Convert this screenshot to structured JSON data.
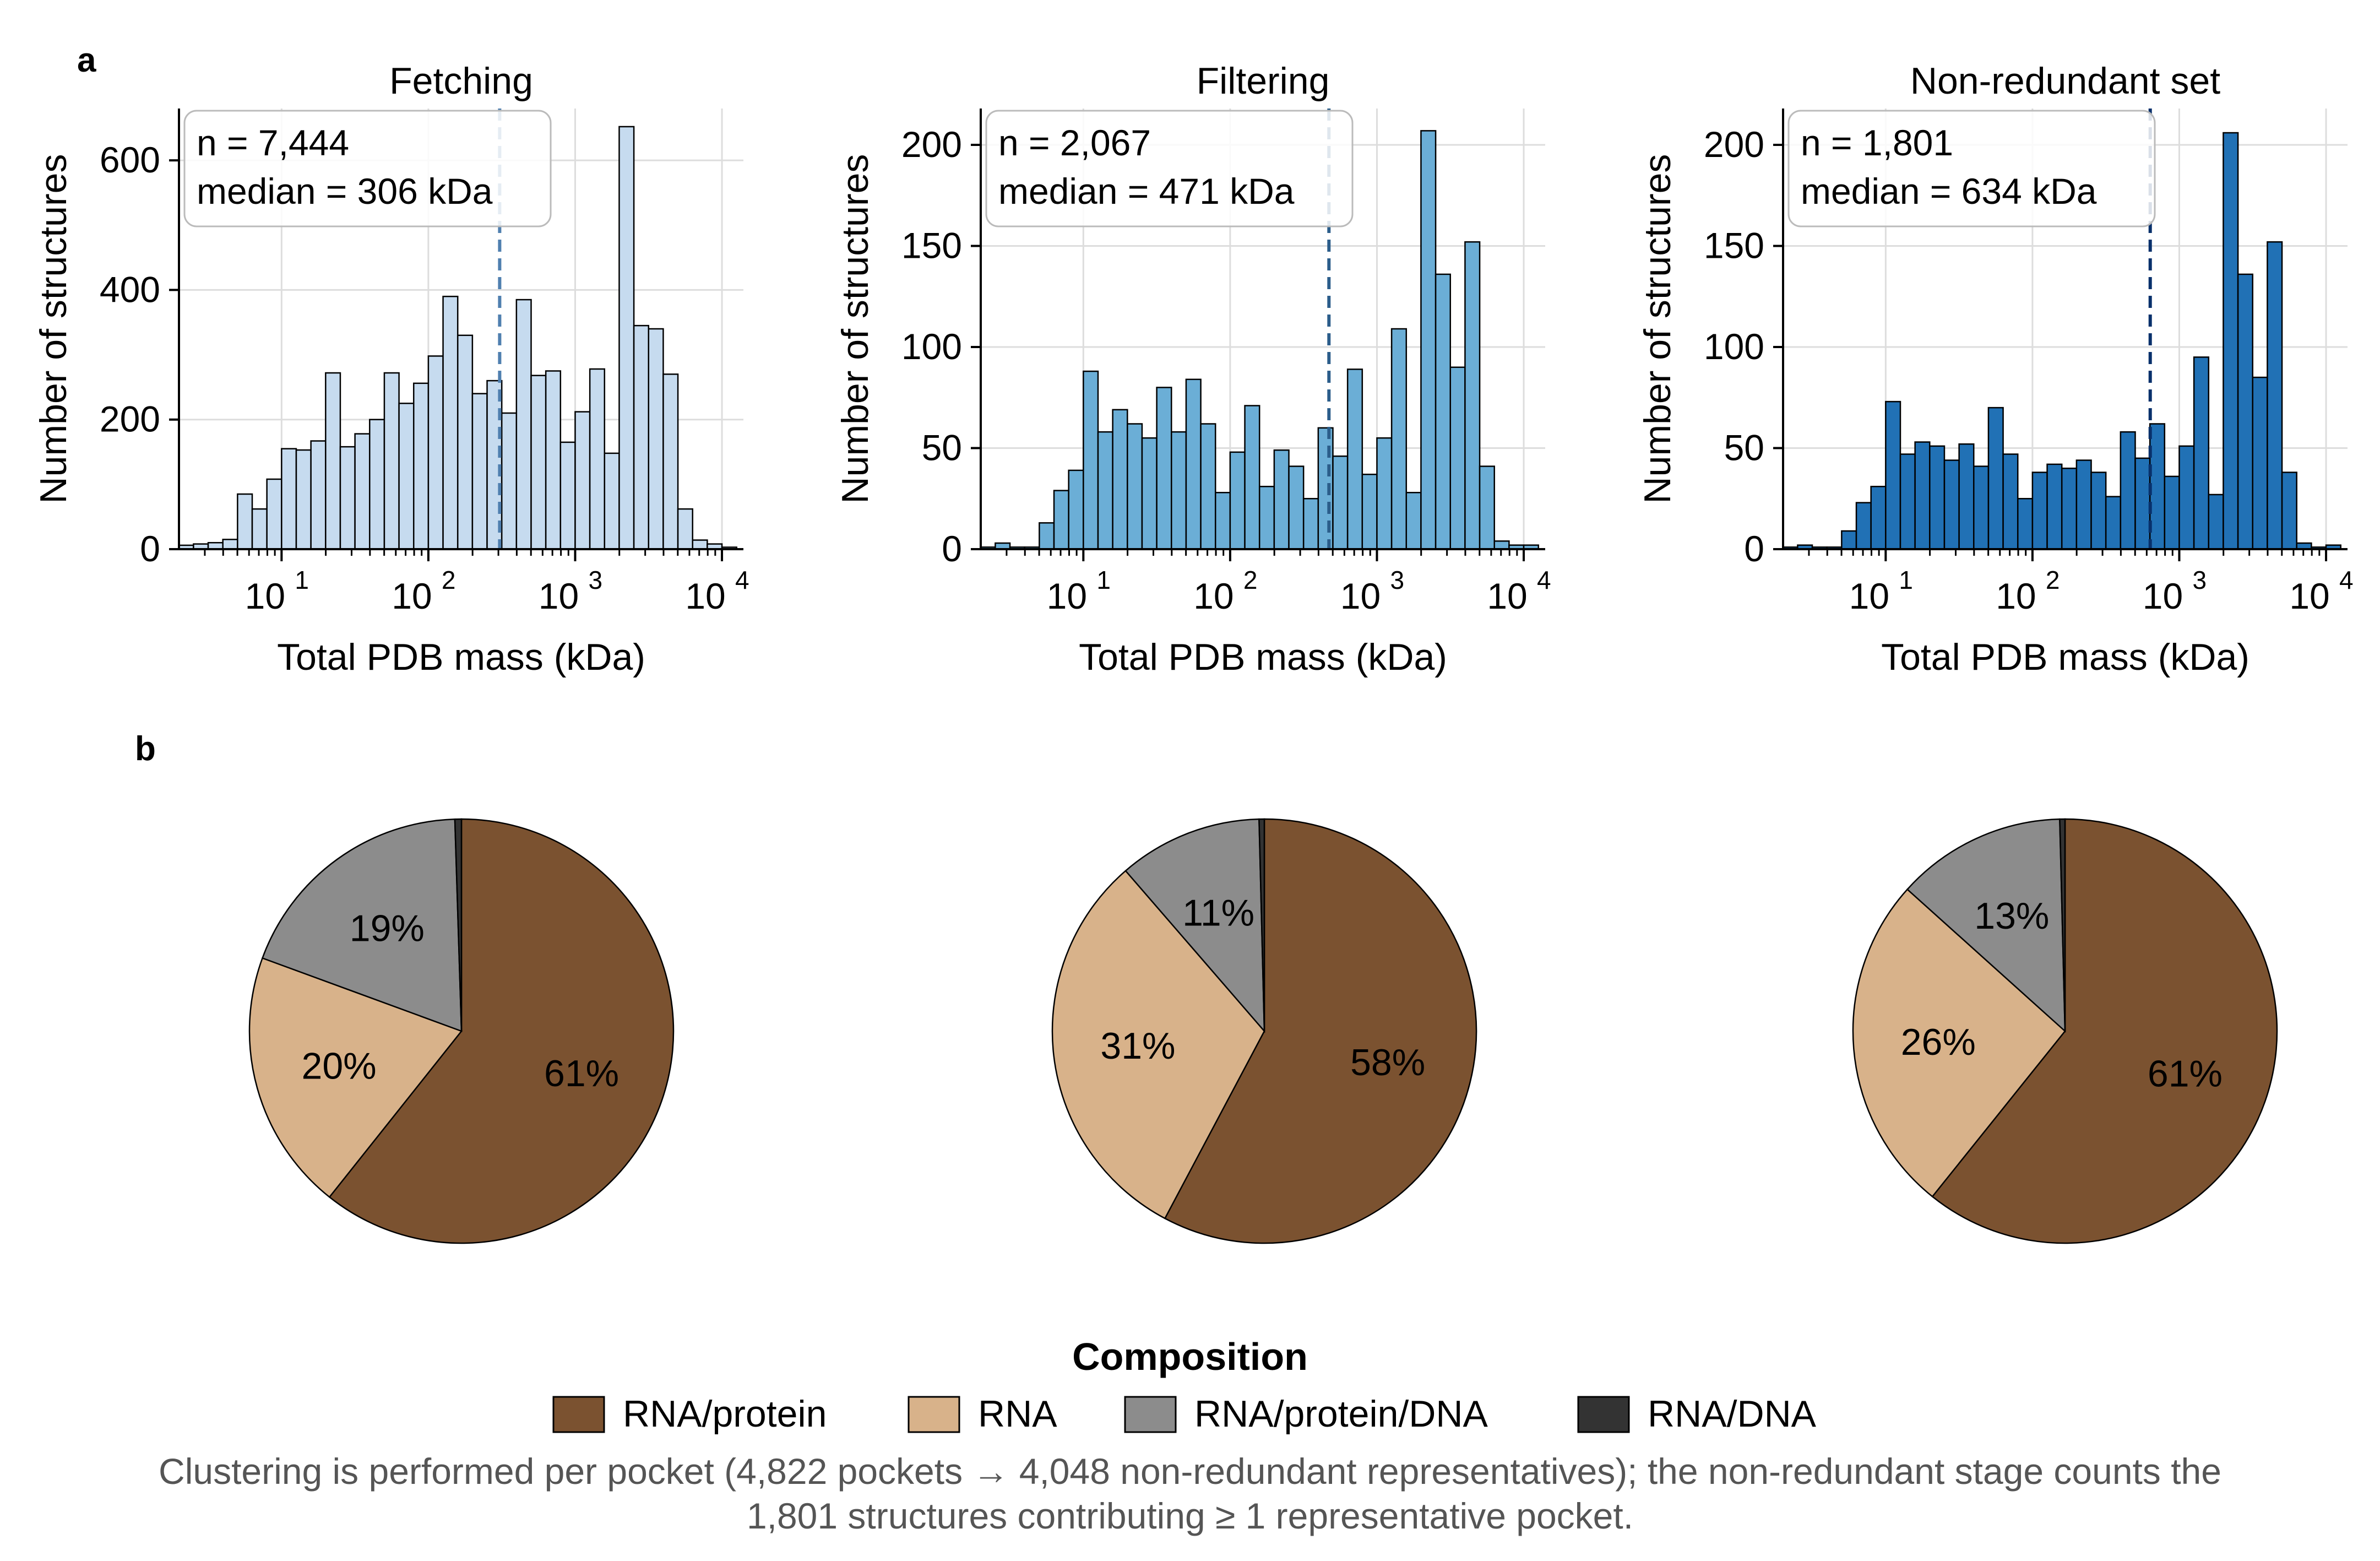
{
  "panel_labels": {
    "a": "a",
    "b": "b"
  },
  "x_axis_label": "Total PDB mass (kDa)",
  "y_axis_label": "Number of structures",
  "x_tick_labels": [
    "10",
    "10",
    "10",
    "10"
  ],
  "x_tick_exponents": [
    "1",
    "2",
    "3",
    "4"
  ],
  "chart_data": [
    {
      "type": "bar",
      "title": "Fetching",
      "xlabel": "Total PDB mass (kDa)",
      "ylabel": "Number of structures",
      "xscale": "log",
      "xlim": [
        2,
        14000
      ],
      "ylim": [
        0,
        680
      ],
      "yticks": [
        0,
        200,
        400,
        600
      ],
      "bin_edges_log10": [
        0.3,
        0.4,
        0.5,
        0.6,
        0.7,
        0.8,
        0.9,
        1.0,
        1.1,
        1.2,
        1.3,
        1.4,
        1.5,
        1.6,
        1.7,
        1.8,
        1.9,
        2.0,
        2.1,
        2.2,
        2.3,
        2.4,
        2.5,
        2.6,
        2.7,
        2.8,
        2.9,
        3.0,
        3.1,
        3.2,
        3.3,
        3.4,
        3.5,
        3.6,
        3.7,
        3.8,
        3.9,
        4.0,
        4.1
      ],
      "values": [
        6,
        8,
        10,
        15,
        85,
        62,
        108,
        155,
        153,
        167,
        272,
        158,
        178,
        200,
        272,
        225,
        256,
        298,
        390,
        330,
        240,
        260,
        210,
        385,
        268,
        275,
        165,
        212,
        278,
        148,
        652,
        345,
        340,
        270,
        62,
        14,
        8,
        3
      ],
      "color": "#c6dbef",
      "median": 306,
      "median_color": "#4f7faf",
      "annotation": [
        "n = 7,444",
        "median = 306 kDa"
      ]
    },
    {
      "type": "bar",
      "title": "Filtering",
      "xlabel": "Total PDB mass (kDa)",
      "ylabel": "Number of structures",
      "xscale": "log",
      "xlim": [
        2,
        14000
      ],
      "ylim": [
        0,
        218
      ],
      "yticks": [
        0,
        50,
        100,
        150,
        200
      ],
      "bin_edges_log10": [
        0.3,
        0.4,
        0.5,
        0.6,
        0.7,
        0.8,
        0.9,
        1.0,
        1.1,
        1.2,
        1.3,
        1.4,
        1.5,
        1.6,
        1.7,
        1.8,
        1.9,
        2.0,
        2.1,
        2.2,
        2.3,
        2.4,
        2.5,
        2.6,
        2.7,
        2.8,
        2.9,
        3.0,
        3.1,
        3.2,
        3.3,
        3.4,
        3.5,
        3.6,
        3.7,
        3.8,
        3.9,
        4.0,
        4.1
      ],
      "values": [
        1,
        3,
        1,
        1,
        13,
        29,
        39,
        88,
        58,
        69,
        62,
        55,
        80,
        58,
        84,
        62,
        28,
        48,
        71,
        31,
        49,
        41,
        25,
        60,
        46,
        89,
        37,
        55,
        109,
        28,
        207,
        136,
        90,
        152,
        41,
        4,
        2,
        2
      ],
      "color": "#6baed6",
      "median": 471,
      "median_color": "#2b5d8a",
      "annotation": [
        "n = 2,067",
        "median = 471 kDa"
      ]
    },
    {
      "type": "bar",
      "title": "Non-redundant set",
      "xlabel": "Total PDB mass (kDa)",
      "ylabel": "Number of structures",
      "xscale": "log",
      "xlim": [
        2,
        14000
      ],
      "ylim": [
        0,
        218
      ],
      "yticks": [
        0,
        50,
        100,
        150,
        200
      ],
      "bin_edges_log10": [
        0.3,
        0.4,
        0.5,
        0.6,
        0.7,
        0.8,
        0.9,
        1.0,
        1.1,
        1.2,
        1.3,
        1.4,
        1.5,
        1.6,
        1.7,
        1.8,
        1.9,
        2.0,
        2.1,
        2.2,
        2.3,
        2.4,
        2.5,
        2.6,
        2.7,
        2.8,
        2.9,
        3.0,
        3.1,
        3.2,
        3.3,
        3.4,
        3.5,
        3.6,
        3.7,
        3.8,
        3.9,
        4.0,
        4.1
      ],
      "values": [
        1,
        2,
        1,
        1,
        9,
        23,
        31,
        73,
        47,
        53,
        51,
        44,
        52,
        41,
        70,
        47,
        25,
        38,
        42,
        40,
        44,
        38,
        26,
        58,
        45,
        62,
        36,
        51,
        95,
        27,
        206,
        136,
        85,
        152,
        38,
        3,
        1,
        2
      ],
      "color": "#2171b5",
      "median": 634,
      "median_color": "#08306b",
      "annotation": [
        "n = 1,801",
        "median = 634 kDa"
      ]
    },
    {
      "type": "pie",
      "title": "",
      "labels": [
        "RNA/protein",
        "RNA",
        "RNA/protein/DNA",
        "RNA/DNA"
      ],
      "values": [
        61,
        20,
        19,
        0.5
      ],
      "label_text": [
        "61%",
        "20%",
        "19%",
        ""
      ],
      "colors": [
        "#7b5230",
        "#d8b28a",
        "#8c8c8c",
        "#333333"
      ]
    },
    {
      "type": "pie",
      "title": "",
      "labels": [
        "RNA/protein",
        "RNA",
        "RNA/protein/DNA",
        "RNA/DNA"
      ],
      "values": [
        58,
        31,
        11,
        0.4
      ],
      "label_text": [
        "58%",
        "31%",
        "11%",
        ""
      ],
      "colors": [
        "#7b5230",
        "#d8b28a",
        "#8c8c8c",
        "#333333"
      ]
    },
    {
      "type": "pie",
      "title": "",
      "labels": [
        "RNA/protein",
        "RNA",
        "RNA/protein/DNA",
        "RNA/DNA"
      ],
      "values": [
        61,
        26,
        13,
        0.4
      ],
      "label_text": [
        "61%",
        "26%",
        "13%",
        ""
      ],
      "colors": [
        "#7b5230",
        "#d8b28a",
        "#8c8c8c",
        "#333333"
      ]
    }
  ],
  "legend": {
    "title": "Composition",
    "items": [
      {
        "label": "RNA/protein",
        "color": "#7b5230"
      },
      {
        "label": "RNA",
        "color": "#d8b28a"
      },
      {
        "label": "RNA/protein/DNA",
        "color": "#8c8c8c"
      },
      {
        "label": "RNA/DNA",
        "color": "#333333"
      }
    ]
  },
  "caption": {
    "line1": "Clustering is performed per pocket (4,822 pockets → 4,048 non-redundant representatives); the non-redundant stage counts the",
    "line2": "1,801 structures contributing ≥ 1 representative pocket."
  }
}
